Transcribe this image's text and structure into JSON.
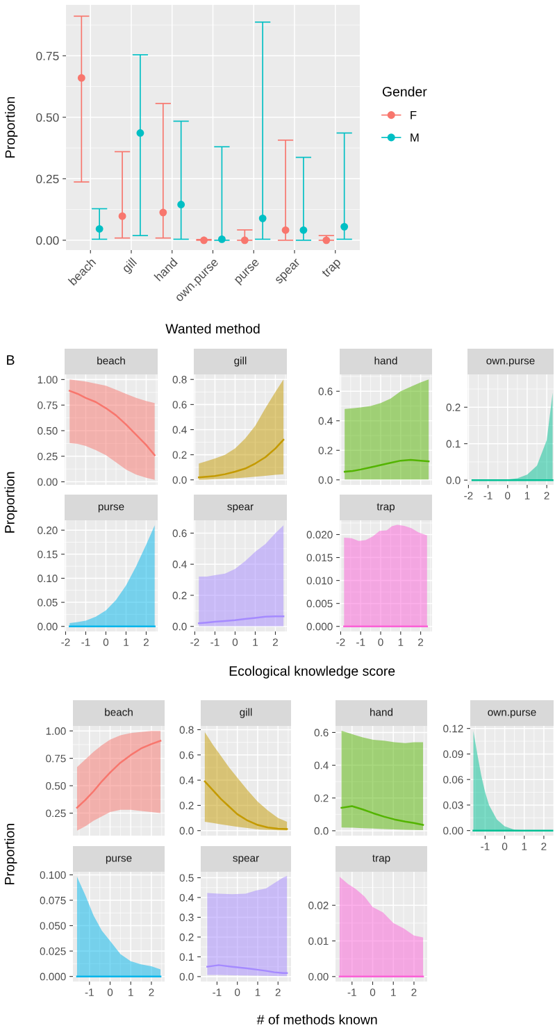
{
  "chart_data": [
    {
      "type": "scatter",
      "xlabel": "Wanted method",
      "ylabel": "Proportion",
      "legend_title": "Gender",
      "legend": "right",
      "marker": "circle",
      "grid": true,
      "categories": [
        "beach",
        "gill",
        "hand",
        "own.purse",
        "purse",
        "spear",
        "trap"
      ],
      "ylim": [
        -0.04,
        0.957
      ],
      "yticks": [
        {
          "value": 0,
          "label": "0.00"
        },
        0.25,
        {
          "value": 0.5,
          "label": "0.50"
        },
        0.75
      ],
      "series": [
        {
          "name": "F",
          "color": "#f8766d",
          "values": [
            0.66,
            0.098,
            0.113,
            0.0,
            0.0,
            0.041,
            0.0
          ],
          "errors": [
            [
              0.237,
              0.911
            ],
            [
              0.009,
              0.36
            ],
            [
              0.009,
              0.556
            ],
            [
              0.0,
              0.003
            ],
            [
              0.0,
              0.042
            ],
            [
              0.0,
              0.407
            ],
            [
              0.0,
              0.019
            ]
          ]
        },
        {
          "name": "M",
          "color": "#00bfc4",
          "values": [
            0.046,
            0.436,
            0.145,
            0.004,
            0.089,
            0.041,
            0.055
          ],
          "errors": [
            [
              0.004,
              0.128
            ],
            [
              0.019,
              0.754
            ],
            [
              0.004,
              0.484
            ],
            [
              0.0,
              0.38
            ],
            [
              0.004,
              0.887
            ],
            [
              0.0,
              0.337
            ],
            [
              0.004,
              0.436
            ]
          ]
        }
      ]
    },
    {
      "type": "line",
      "title": "beach",
      "annotations": [
        "B"
      ],
      "grid": true,
      "tick_labels": "y",
      "x": [
        -1.8,
        -1.4,
        -1,
        -0.5,
        0,
        0.5,
        1,
        1.5,
        2,
        2.42
      ],
      "xlim": [
        -2.05,
        2.57
      ],
      "xticks": [
        -2,
        -1,
        0,
        1,
        2
      ],
      "ylim": [
        -0.03,
        1.05
      ],
      "yticks": [
        {
          "value": 0,
          "label": "0.00"
        },
        0.25,
        {
          "value": 0.5,
          "label": "0.50"
        },
        0.75,
        {
          "value": 1,
          "label": "1.00"
        }
      ],
      "series": [
        {
          "color": "#f8766d",
          "values": [
            0.89,
            0.86,
            0.82,
            0.78,
            0.72,
            0.65,
            0.56,
            0.46,
            0.36,
            0.26
          ],
          "lower": [
            0.38,
            0.37,
            0.35,
            0.31,
            0.26,
            0.19,
            0.12,
            0.07,
            0.04,
            0.02
          ],
          "upper": [
            1.0,
            0.99,
            0.98,
            0.96,
            0.94,
            0.9,
            0.86,
            0.82,
            0.79,
            0.77
          ]
        }
      ]
    },
    {
      "type": "line",
      "title": "gill",
      "grid": true,
      "tick_labels": "y",
      "x": [
        -1.8,
        -1.4,
        -1,
        -0.5,
        0,
        0.5,
        1,
        1.5,
        2,
        2.4
      ],
      "xlim": [
        -2.05,
        2.57
      ],
      "xticks": [
        -2,
        -1,
        0,
        1,
        2
      ],
      "ylim": [
        -0.04,
        0.84
      ],
      "yticks": [
        {
          "value": 0,
          "label": "0.0"
        },
        0.2,
        0.4,
        0.6,
        0.8
      ],
      "series": [
        {
          "color": "#c49a00",
          "values": [
            0.02,
            0.025,
            0.03,
            0.045,
            0.065,
            0.09,
            0.13,
            0.18,
            0.25,
            0.32
          ],
          "lower": [
            0.0,
            0.002,
            0.005,
            0.008,
            0.012,
            0.018,
            0.025,
            0.032,
            0.04,
            0.045
          ],
          "upper": [
            0.13,
            0.15,
            0.17,
            0.2,
            0.25,
            0.33,
            0.43,
            0.57,
            0.7,
            0.8
          ]
        }
      ]
    },
    {
      "type": "line",
      "title": "hand",
      "grid": true,
      "tick_labels": "y",
      "x": [
        -1.8,
        -1.4,
        -1,
        -0.5,
        0,
        0.5,
        1,
        1.5,
        2,
        2.4
      ],
      "xlim": [
        -2.05,
        2.57
      ],
      "xticks": [
        -2,
        -1,
        0,
        1,
        2
      ],
      "ylim": [
        -0.034,
        0.714
      ],
      "yticks": [
        {
          "value": 0,
          "label": "0.0"
        },
        0.2,
        0.4,
        0.6
      ],
      "series": [
        {
          "color": "#53b400",
          "values": [
            0.055,
            0.06,
            0.07,
            0.085,
            0.1,
            0.115,
            0.13,
            0.135,
            0.13,
            0.125
          ],
          "lower": [
            0.003,
            0.003,
            0.003,
            0.003,
            0.003,
            0.003,
            0.003,
            0.003,
            0.003,
            0.003
          ],
          "upper": [
            0.48,
            0.485,
            0.49,
            0.5,
            0.52,
            0.55,
            0.6,
            0.63,
            0.66,
            0.68
          ]
        }
      ]
    },
    {
      "type": "line",
      "title": "own.purse",
      "grid": true,
      "x": [
        -1.8,
        -1.4,
        -1,
        -0.5,
        0,
        0.5,
        1,
        1.5,
        2,
        2.3
      ],
      "xlim": [
        -2.05,
        2.35
      ],
      "xticks": [
        -2,
        -1,
        0,
        1,
        2
      ],
      "ylim": [
        -0.013,
        0.29
      ],
      "yticks": [
        {
          "value": 0,
          "label": "0.0"
        },
        0.1,
        0.2
      ],
      "series": [
        {
          "color": "#00c094",
          "values": [
            0,
            0,
            0,
            0,
            0,
            0,
            0,
            0,
            0,
            0
          ],
          "lower": [
            0,
            0,
            0,
            0,
            0,
            0,
            0,
            0,
            0,
            0
          ],
          "upper": [
            0.0,
            0.0,
            0.001,
            0.001,
            0.002,
            0.005,
            0.015,
            0.04,
            0.11,
            0.24
          ]
        }
      ]
    },
    {
      "type": "line",
      "title": "purse",
      "ylabel": "Proportion",
      "grid": true,
      "x": [
        -1.8,
        -1.4,
        -1,
        -0.5,
        0,
        0.5,
        1,
        1.5,
        2,
        2.42
      ],
      "xlim": [
        -2.05,
        2.57
      ],
      "xticks": [
        -2,
        -1,
        0,
        1,
        2
      ],
      "ylim": [
        -0.0105,
        0.2205
      ],
      "yticks": [
        {
          "value": 0,
          "label": "0.00"
        },
        0.05,
        {
          "value": 0.1,
          "label": "0.10"
        },
        0.15,
        {
          "value": 0.2,
          "label": "0.20"
        }
      ],
      "series": [
        {
          "color": "#00b6eb",
          "values": [
            0,
            0,
            0,
            0,
            0,
            0,
            0,
            0,
            0,
            0
          ],
          "lower": [
            0,
            0,
            0,
            0,
            0,
            0,
            0,
            0,
            0,
            0
          ],
          "upper": [
            0.007,
            0.009,
            0.012,
            0.02,
            0.033,
            0.055,
            0.085,
            0.125,
            0.17,
            0.21
          ]
        }
      ]
    },
    {
      "type": "line",
      "title": "spear",
      "xlabel": "Ecological knowledge score",
      "grid": true,
      "x": [
        -1.8,
        -1.4,
        -1,
        -0.5,
        0,
        0.5,
        1,
        1.5,
        2,
        2.4
      ],
      "xlim": [
        -2.05,
        2.57
      ],
      "xticks": [
        -2,
        -1,
        0,
        1,
        2
      ],
      "ylim": [
        -0.0325,
        0.6825
      ],
      "yticks": [
        {
          "value": 0,
          "label": "0.0"
        },
        0.2,
        0.4,
        0.6
      ],
      "series": [
        {
          "color": "#a58aff",
          "values": [
            0.02,
            0.025,
            0.03,
            0.035,
            0.04,
            0.048,
            0.055,
            0.062,
            0.065,
            0.065
          ],
          "lower": [
            0.001,
            0.001,
            0.001,
            0.001,
            0.001,
            0.001,
            0.001,
            0.001,
            0.001,
            0.001
          ],
          "upper": [
            0.32,
            0.32,
            0.33,
            0.34,
            0.37,
            0.42,
            0.48,
            0.53,
            0.6,
            0.65
          ]
        }
      ]
    },
    {
      "type": "line",
      "title": "trap",
      "grid": true,
      "x": [
        -1.83,
        -1.46,
        -1.1,
        -0.75,
        -0.4,
        -0.05,
        0.3,
        0.56,
        0.83,
        1.18,
        1.53,
        1.88,
        2.32
      ],
      "xlim": [
        -2.05,
        2.57
      ],
      "xticks": [
        -2,
        -1,
        0,
        1,
        2
      ],
      "ylim": [
        -0.0011,
        0.0231
      ],
      "yticks": [
        {
          "value": 0,
          "label": "0.000"
        },
        0.005,
        {
          "value": 0.01,
          "label": "0.010"
        },
        0.015,
        {
          "value": 0.02,
          "label": "0.020"
        }
      ],
      "series": [
        {
          "color": "#fb61d7",
          "values": [
            0,
            0,
            0,
            0,
            0,
            0,
            0,
            0,
            0,
            0,
            0,
            0,
            0
          ],
          "lower": [
            0,
            0,
            0,
            0,
            0,
            0,
            0,
            0,
            0,
            0,
            0,
            0,
            0
          ],
          "upper": [
            0.0193,
            0.0192,
            0.0186,
            0.0188,
            0.0196,
            0.0208,
            0.0209,
            0.0218,
            0.0221,
            0.0219,
            0.0214,
            0.0205,
            0.0198
          ]
        }
      ]
    },
    {
      "type": "line",
      "title": "beach",
      "grid": true,
      "tick_labels": "y",
      "x": [
        -1.6,
        -1.2,
        -0.8,
        -0.4,
        0,
        0.5,
        1,
        1.5,
        2,
        2.44
      ],
      "xlim": [
        -1.8,
        2.64
      ],
      "xticks": [
        -1,
        0,
        1,
        2
      ],
      "ylim": [
        0.0445,
        1.0455
      ],
      "yticks": [
        0.25,
        {
          "value": 0.5,
          "label": "0.50"
        },
        0.75,
        {
          "value": 1,
          "label": "1.00"
        }
      ],
      "series": [
        {
          "color": "#f8766d",
          "values": [
            0.3,
            0.37,
            0.45,
            0.54,
            0.62,
            0.71,
            0.78,
            0.84,
            0.88,
            0.91
          ],
          "lower": [
            0.09,
            0.13,
            0.18,
            0.22,
            0.26,
            0.28,
            0.28,
            0.27,
            0.26,
            0.25
          ],
          "upper": [
            0.67,
            0.74,
            0.81,
            0.87,
            0.92,
            0.96,
            0.98,
            0.99,
            1.0,
            1.0
          ]
        }
      ]
    },
    {
      "type": "line",
      "title": "gill",
      "grid": true,
      "tick_labels": "y",
      "x": [
        -1.6,
        -1.2,
        -0.8,
        -0.4,
        0,
        0.5,
        1,
        1.5,
        2,
        2.44
      ],
      "xlim": [
        -1.8,
        2.64
      ],
      "xticks": [
        -1,
        0,
        1,
        2
      ],
      "ylim": [
        -0.04,
        0.83
      ],
      "yticks": [
        {
          "value": 0,
          "label": "0.0"
        },
        0.2,
        0.4,
        0.6,
        0.8
      ],
      "series": [
        {
          "color": "#c49a00",
          "values": [
            0.39,
            0.32,
            0.25,
            0.19,
            0.13,
            0.08,
            0.045,
            0.025,
            0.015,
            0.013
          ],
          "lower": [
            0.07,
            0.06,
            0.05,
            0.04,
            0.03,
            0.02,
            0.01,
            0.005,
            0.002,
            0.001
          ],
          "upper": [
            0.78,
            0.68,
            0.59,
            0.5,
            0.42,
            0.32,
            0.23,
            0.16,
            0.1,
            0.07
          ]
        }
      ]
    },
    {
      "type": "line",
      "title": "hand",
      "grid": true,
      "tick_labels": "y",
      "x": [
        -1.51,
        -1.0,
        -0.48,
        0.03,
        0.55,
        1.06,
        1.58,
        2.0,
        2.44
      ],
      "xlim": [
        -1.8,
        2.64
      ],
      "xticks": [
        -1,
        0,
        1,
        2
      ],
      "ylim": [
        -0.03,
        0.64
      ],
      "yticks": [
        {
          "value": 0,
          "label": "0.0"
        },
        0.2,
        0.4,
        0.6
      ],
      "series": [
        {
          "color": "#53b400",
          "values": [
            0.14,
            0.15,
            0.13,
            0.107,
            0.086,
            0.069,
            0.056,
            0.047,
            0.036
          ],
          "lower": [
            0.02,
            0.019,
            0.016,
            0.013,
            0.01,
            0.008,
            0.006,
            0.005,
            0.004
          ],
          "upper": [
            0.61,
            0.59,
            0.57,
            0.555,
            0.55,
            0.54,
            0.535,
            0.54,
            0.54
          ]
        }
      ]
    },
    {
      "type": "line",
      "title": "own.purse",
      "grid": true,
      "x": [
        -1.6,
        -1.4,
        -1.2,
        -1,
        -0.8,
        -0.4,
        0,
        0.5,
        1,
        2.44
      ],
      "xlim": [
        -1.76,
        2.5
      ],
      "xticks": [
        -1,
        0,
        1,
        2
      ],
      "ylim": [
        -0.006,
        0.123
      ],
      "yticks": [
        {
          "value": 0,
          "label": "0.00"
        },
        0.03,
        0.06,
        0.09,
        0.12
      ],
      "series": [
        {
          "color": "#00c094",
          "values": [
            0,
            0,
            0,
            0,
            0,
            0,
            0,
            0,
            0,
            0
          ],
          "lower": [
            0,
            0,
            0,
            0,
            0,
            0,
            0,
            0,
            0,
            0
          ],
          "upper": [
            0.117,
            0.09,
            0.065,
            0.045,
            0.03,
            0.013,
            0.005,
            0.001,
            0.0003,
            0
          ]
        }
      ]
    },
    {
      "type": "line",
      "title": "purse",
      "ylabel": "Proportion",
      "grid": true,
      "x": [
        -1.6,
        -1.2,
        -0.8,
        -0.4,
        0,
        0.5,
        1,
        1.5,
        2,
        2.44
      ],
      "xlim": [
        -1.8,
        2.64
      ],
      "xticks": [
        -1,
        0,
        1,
        2
      ],
      "ylim": [
        -0.005,
        0.103
      ],
      "yticks": [
        {
          "value": 0,
          "label": "0.000"
        },
        0.025,
        {
          "value": 0.05,
          "label": "0.050"
        },
        0.075,
        {
          "value": 0.1,
          "label": "0.100"
        }
      ],
      "series": [
        {
          "color": "#00b6eb",
          "values": [
            0,
            0,
            0,
            0,
            0,
            0,
            0,
            0,
            0,
            0
          ],
          "lower": [
            0,
            0,
            0,
            0,
            0,
            0,
            0,
            0,
            0,
            0
          ],
          "upper": [
            0.098,
            0.08,
            0.06,
            0.045,
            0.035,
            0.022,
            0.015,
            0.012,
            0.01,
            0.007
          ]
        }
      ]
    },
    {
      "type": "line",
      "title": "spear",
      "xlabel": "# of methods known",
      "grid": true,
      "x": [
        -1.48,
        -0.92,
        -0.25,
        0.41,
        0.91,
        1.41,
        1.82,
        2.24,
        2.44
      ],
      "xlim": [
        -1.8,
        2.64
      ],
      "xticks": [
        -1,
        0,
        1,
        2
      ],
      "ylim": [
        -0.025,
        0.53
      ],
      "yticks": [
        {
          "value": 0,
          "label": "0.0"
        },
        0.1,
        0.2,
        0.3,
        0.4,
        0.5
      ],
      "series": [
        {
          "color": "#a58aff",
          "values": [
            0.05,
            0.058,
            0.05,
            0.043,
            0.036,
            0.029,
            0.022,
            0.018,
            0.018
          ],
          "lower": [
            0.008,
            0.008,
            0.007,
            0.006,
            0.005,
            0.004,
            0.003,
            0.002,
            0.002
          ],
          "upper": [
            0.423,
            0.419,
            0.417,
            0.419,
            0.435,
            0.446,
            0.473,
            0.5,
            0.509
          ]
        }
      ]
    },
    {
      "type": "line",
      "title": "trap",
      "grid": true,
      "x": [
        -1.6,
        -1.2,
        -0.8,
        -0.4,
        0,
        0.5,
        1,
        1.5,
        2,
        2.44
      ],
      "xlim": [
        -1.8,
        2.64
      ],
      "xticks": [
        -1,
        0,
        1,
        2
      ],
      "ylim": [
        -0.0014,
        0.0294
      ],
      "yticks": [
        {
          "value": 0,
          "label": "0.00"
        },
        0.01,
        0.02
      ],
      "series": [
        {
          "color": "#fb61d7",
          "values": [
            0,
            0,
            0,
            0,
            0,
            0,
            0,
            0,
            0,
            0
          ],
          "lower": [
            0,
            0,
            0,
            0,
            0,
            0,
            0,
            0,
            0,
            0
          ],
          "upper": [
            0.028,
            0.026,
            0.0245,
            0.0225,
            0.0195,
            0.018,
            0.015,
            0.0135,
            0.0115,
            0.011
          ]
        }
      ]
    }
  ]
}
